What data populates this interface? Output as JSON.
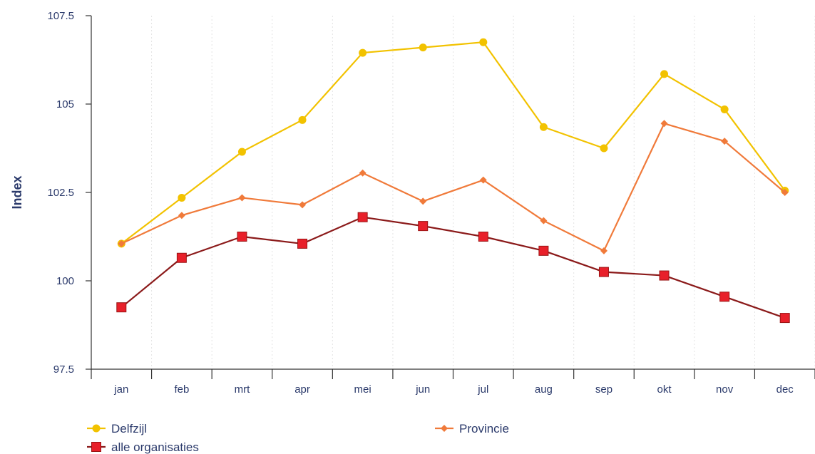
{
  "chart_data": {
    "type": "line",
    "title": "",
    "xlabel": "",
    "ylabel": "Index",
    "categories": [
      "jan",
      "feb",
      "mrt",
      "apr",
      "mei",
      "jun",
      "jul",
      "aug",
      "sep",
      "okt",
      "nov",
      "dec"
    ],
    "ylim": [
      97.5,
      107.5
    ],
    "yticks": [
      "97.5",
      "100",
      "102.5",
      "105",
      "107.5"
    ],
    "grid": "vertical-dotted",
    "legend_position": "bottom",
    "series": [
      {
        "name": "Delfzijl",
        "color": "#f2c200",
        "marker": "circle",
        "values": [
          101.05,
          102.35,
          103.65,
          104.55,
          106.45,
          106.6,
          106.75,
          104.35,
          103.75,
          105.85,
          104.85,
          102.55
        ]
      },
      {
        "name": "Provincie",
        "color": "#f07a3a",
        "marker": "diamond",
        "values": [
          101.05,
          101.85,
          102.35,
          102.15,
          103.05,
          102.25,
          102.85,
          101.7,
          100.85,
          104.45,
          103.95,
          102.5
        ]
      },
      {
        "name": "alle organisaties",
        "color": "#8b1a1a",
        "marker_color": "#e8202a",
        "marker": "square",
        "values": [
          99.25,
          100.65,
          101.25,
          101.05,
          101.8,
          101.55,
          101.25,
          100.85,
          100.25,
          100.15,
          99.55,
          98.95
        ]
      }
    ]
  }
}
